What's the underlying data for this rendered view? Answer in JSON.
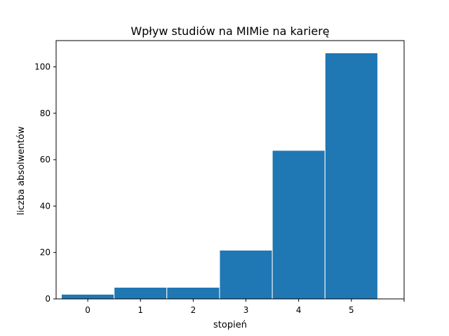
{
  "chart_data": {
    "type": "bar",
    "title": "Wpływ studiów na MIMie na karierę",
    "xlabel": "stopień",
    "ylabel": "liczba absolwentów",
    "categories": [
      "0",
      "1",
      "2",
      "3",
      "4",
      "5"
    ],
    "values": [
      2,
      5,
      5,
      21,
      64,
      106
    ],
    "xlim": [
      -0.6,
      6.0
    ],
    "ylim": [
      0,
      111.3
    ],
    "xticks": [
      0,
      1,
      2,
      3,
      4,
      5,
      6
    ],
    "xtick_labels": [
      "0",
      "1",
      "2",
      "3",
      "4",
      "5",
      ""
    ],
    "yticks": [
      0,
      20,
      40,
      60,
      80,
      100
    ],
    "ytick_labels": [
      "0",
      "20",
      "40",
      "60",
      "80",
      "100"
    ],
    "bar_color": "#1f77b4",
    "bar_edge_color": "#ffffff",
    "grid": false,
    "legend": "none"
  }
}
